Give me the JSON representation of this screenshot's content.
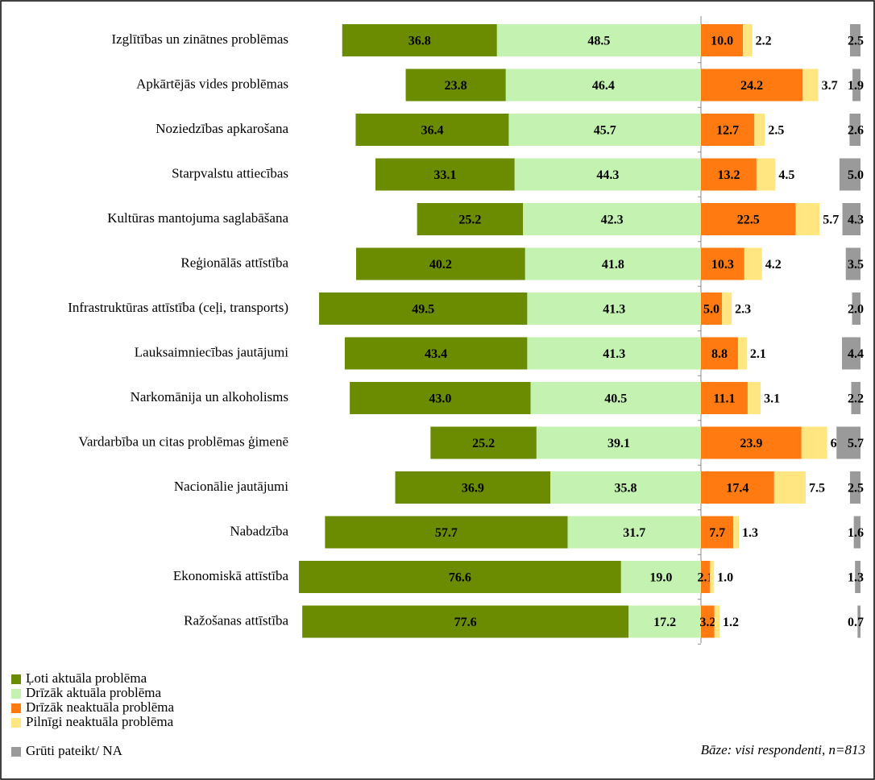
{
  "chart_data": {
    "type": "bar",
    "categories": [
      "Izglītības un zinātnes problēmas",
      "Apkārtējās vides problēmas",
      "Noziedzības apkarošana",
      "Starpvalstu attiecības",
      "Kultūras mantojuma saglabāšana",
      "Reģionālās attīstība",
      "Infrastruktūras attīstība (ceļi, transports)",
      "Lauksaimniecības jautājumi",
      "Narkomānija un alkoholisms",
      "Vardarbība un citas problēmas ģimenē",
      "Nacionālie jautājumi",
      "Nabadzība",
      "Ekonomiskā attīstība",
      "Ražošanas attīstība"
    ],
    "series": [
      {
        "name": "Ļoti aktuāla problēma",
        "color": "#6b8c00",
        "values": [
          36.8,
          23.8,
          36.4,
          33.1,
          25.2,
          40.2,
          49.5,
          43.4,
          43.0,
          25.2,
          36.9,
          57.7,
          76.6,
          77.6
        ],
        "value_labels": [
          "36.8",
          "23.8",
          "36.4",
          "33.1",
          "25.2",
          "40.2",
          "49.5",
          "43.4",
          "43.0",
          "25.2",
          "36.9",
          "57.7",
          "76.6",
          "77.6"
        ]
      },
      {
        "name": "Drīzāk aktuāla problēma",
        "color": "#c4f2b0",
        "values": [
          48.5,
          46.4,
          45.7,
          44.3,
          42.3,
          41.8,
          41.3,
          41.3,
          40.5,
          39.1,
          35.8,
          31.7,
          19.0,
          17.2
        ],
        "value_labels": [
          "48.5",
          "46.4",
          "45.7",
          "44.3",
          "42.3",
          "41.8",
          "41.3",
          "41.3",
          "40.5",
          "39.1",
          "35.8",
          "31.7",
          "19.0",
          "17.2"
        ]
      },
      {
        "name": "Drīzāk neaktuāla problēma",
        "color": "#ff7a10",
        "values": [
          10.0,
          24.2,
          12.7,
          13.2,
          22.5,
          10.3,
          5.0,
          8.8,
          11.1,
          23.9,
          17.4,
          7.7,
          2.1,
          3.2
        ],
        "value_labels": [
          "10.0",
          "24.2",
          "12.7",
          "13.2",
          "22.5",
          "10.3",
          "5.0",
          "8.8",
          "11.1",
          "23.9",
          "17.4",
          "7.7",
          "2.1",
          "3.2"
        ]
      },
      {
        "name": "Pilnīgi neaktuāla problēma",
        "color": "#ffe680",
        "values": [
          2.2,
          3.7,
          2.5,
          4.5,
          5.7,
          4.2,
          2.3,
          2.1,
          3.1,
          6.1,
          7.5,
          1.3,
          1.0,
          1.2
        ],
        "value_labels": [
          "2.2",
          "3.7",
          "2.5",
          "4.5",
          "5.7",
          "4.2",
          "2.3",
          "2.1",
          "3.1",
          "6.1",
          "7.5",
          "1.3",
          "1.0",
          "1.2"
        ]
      },
      {
        "name": "Grūti pateikt/ NA",
        "color": "#9a9a9a",
        "values": [
          2.5,
          1.9,
          2.6,
          5.0,
          4.3,
          3.5,
          2.0,
          4.4,
          2.2,
          5.7,
          2.5,
          1.6,
          1.3,
          0.7
        ],
        "value_labels": [
          "2.5",
          "1.9",
          "2.6",
          "5.0",
          "4.3",
          "3.5",
          "2.0",
          "4.4",
          "2.2",
          "5.7",
          "2.5",
          "1.6",
          "1.3",
          "0.7"
        ]
      }
    ],
    "annotation": "Bāze: visi respondenti, n=813"
  }
}
